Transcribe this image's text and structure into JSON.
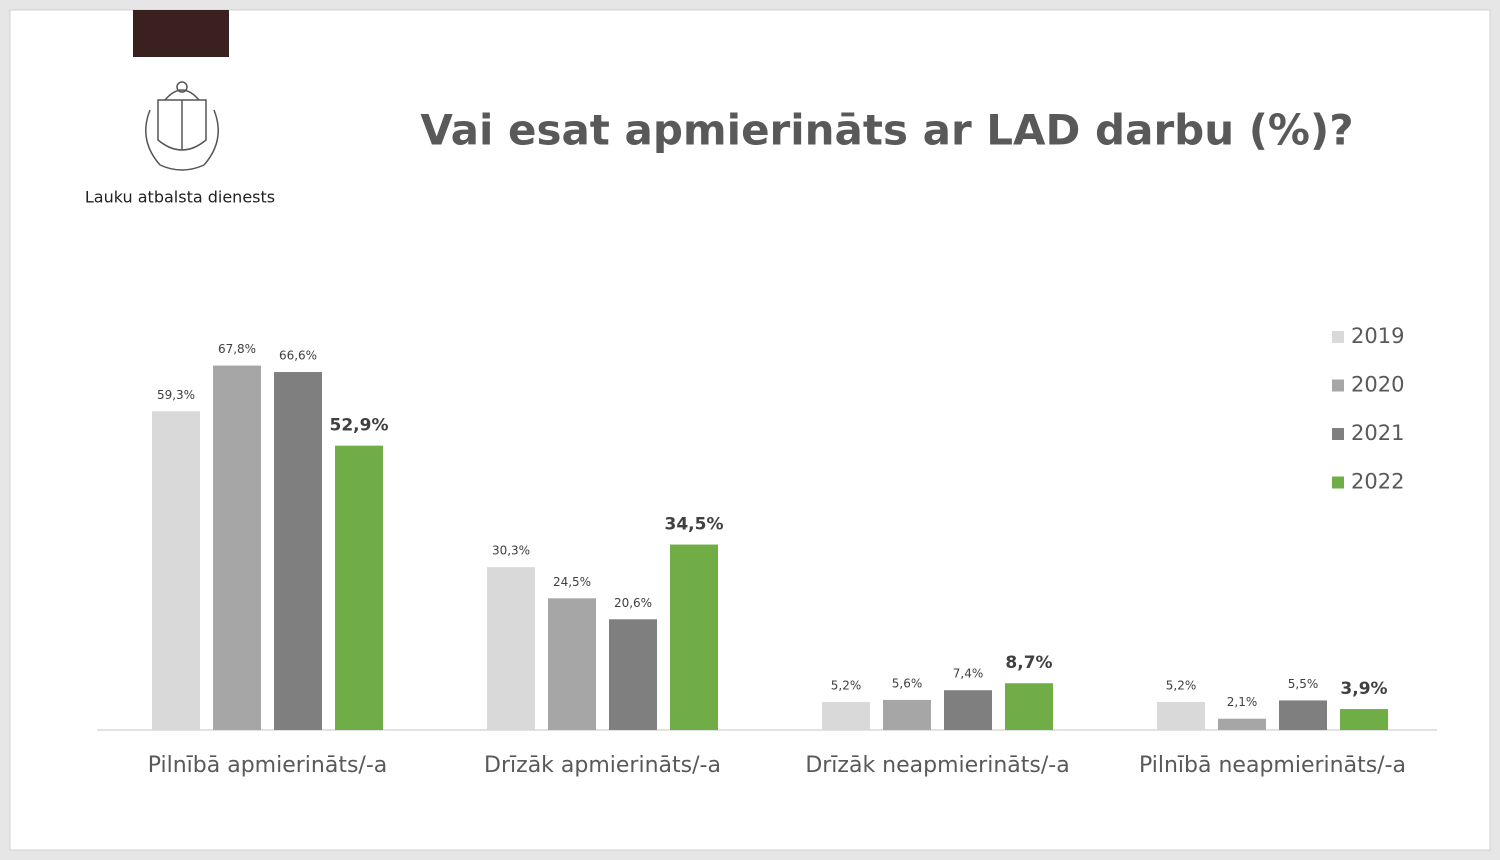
{
  "logo": {
    "text": "Lauku atbalsta dienests"
  },
  "chart_data": {
    "type": "bar",
    "title": "Vai esat apmierināts ar LAD darbu (%)?",
    "categories": [
      "Pilnībā apmierināts/-a",
      "Drīzāk apmierināts/-a",
      "Drīzāk neapmierināts/-a",
      "Pilnībā neapmierināts/-a"
    ],
    "series": [
      {
        "name": "2019",
        "color": "#d9d9d9",
        "values": [
          59.3,
          30.3,
          5.2,
          5.2
        ],
        "value_labels": [
          "59,3%",
          "30,3%",
          "5,2%",
          "5,2%"
        ]
      },
      {
        "name": "2020",
        "color": "#a6a6a6",
        "values": [
          67.8,
          24.5,
          5.6,
          2.1
        ],
        "value_labels": [
          "67,8%",
          "24,5%",
          "5,6%",
          "2,1%"
        ]
      },
      {
        "name": "2021",
        "color": "#7f7f7f",
        "values": [
          66.6,
          20.6,
          7.4,
          5.5
        ],
        "value_labels": [
          "66,6%",
          "20,6%",
          "7,4%",
          "5,5%"
        ]
      },
      {
        "name": "2022",
        "color": "#70ad47",
        "values": [
          52.9,
          34.5,
          8.7,
          3.9
        ],
        "value_labels": [
          "52,9%",
          "34,5%",
          "8,7%",
          "3,9%"
        ]
      }
    ],
    "ylim": [
      0,
      80
    ],
    "legend": "right"
  }
}
